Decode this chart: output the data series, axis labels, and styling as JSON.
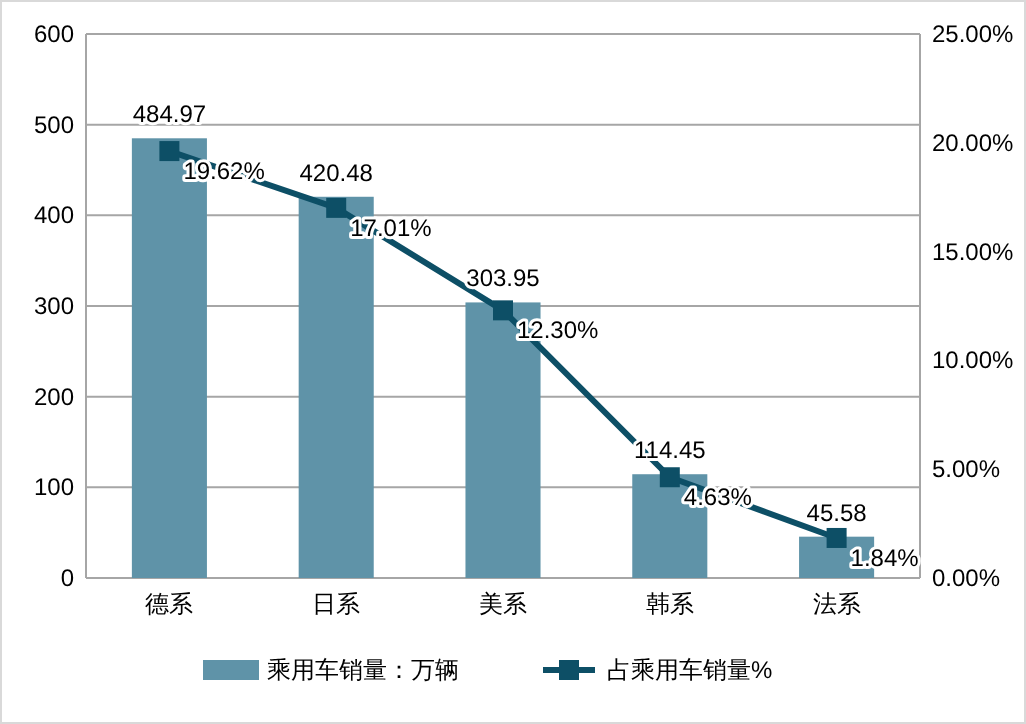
{
  "chart_data": {
    "type": "bar",
    "categories": [
      "德系",
      "日系",
      "美系",
      "韩系",
      "法系"
    ],
    "series": [
      {
        "name": "乘用车销量：万辆",
        "color": "#5f93a8",
        "values": [
          484.97,
          420.48,
          303.95,
          114.45,
          45.58
        ],
        "value_labels": [
          "484.97",
          "420.48",
          "303.95",
          "114.45",
          "45.58"
        ]
      },
      {
        "name": "占乘用车销量%",
        "type": "line",
        "axis": "y2",
        "color": "#0d4f66",
        "marker": "square",
        "values": [
          19.62,
          17.01,
          12.3,
          4.63,
          1.84
        ],
        "value_labels": [
          "19.62%",
          "17.01%",
          "12.30%",
          "4.63%",
          "1.84%"
        ]
      }
    ],
    "ylim": [
      0,
      600
    ],
    "yticks": [
      0,
      100,
      200,
      300,
      400,
      500,
      600
    ],
    "y2lim": [
      0,
      25
    ],
    "y2ticks": [
      {
        "value": 0,
        "label": "0.00%"
      },
      {
        "value": 5,
        "label": "5.00%"
      },
      {
        "value": 10,
        "label": "10.00%"
      },
      {
        "value": 15,
        "label": "15.00%"
      },
      {
        "value": 20,
        "label": "20.00%"
      },
      {
        "value": 25,
        "label": "25.00%"
      }
    ],
    "grid": "y",
    "legend": "bottom"
  }
}
